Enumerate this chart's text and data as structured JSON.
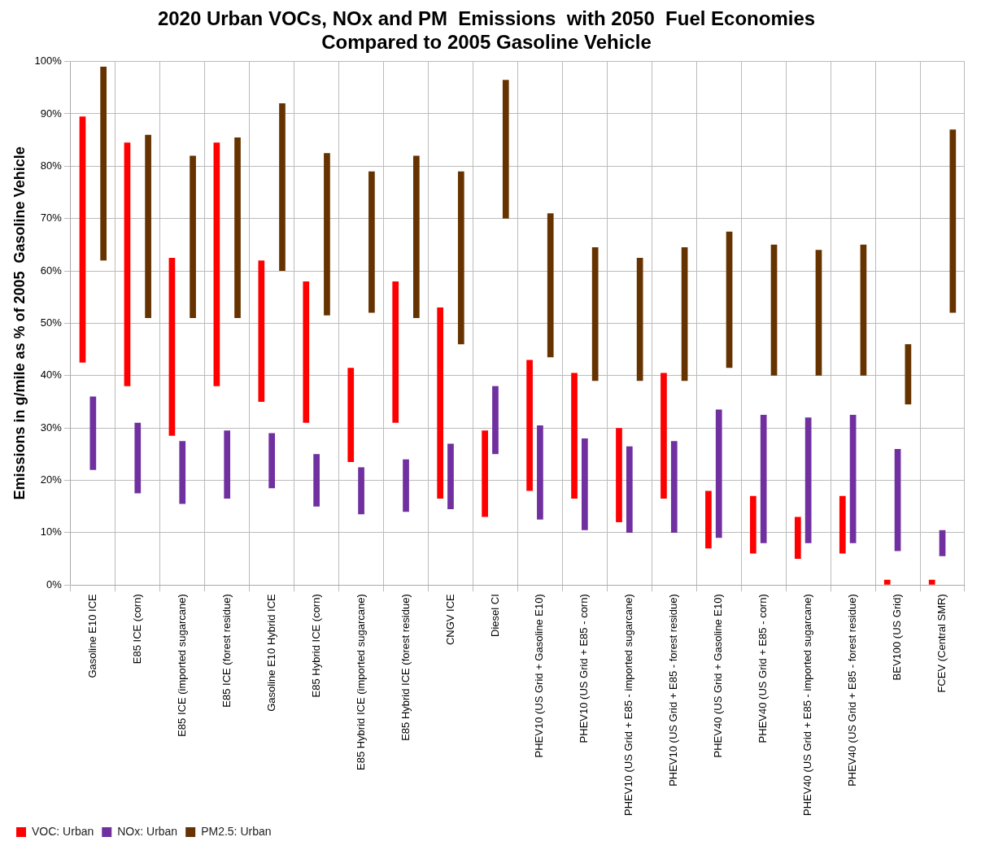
{
  "chart_data": {
    "type": "bar",
    "title": "2020 Urban VOCs, NOx and PM  Emissions  with 2050  Fuel Economies\nCompared to 2005 Gasoline Vehicle",
    "ylabel": "Emissions in g/mile as % of 2005  Gasoline Vehicle",
    "categories": [
      "Gasoline E10 ICE",
      "E85 ICE (corn)",
      "E85 ICE (imported sugarcane)",
      "E85 ICE (forest residue)",
      "Gasoline E10 Hybrid ICE",
      "E85 Hybrid ICE (corn)",
      "E85 Hybrid ICE (imported sugarcane)",
      "E85 Hybrid ICE (forest residue)",
      "CNGV ICE",
      "Diesel CI",
      "PHEV10 (US Grid + Gasoline E10)",
      "PHEV10 (US Grid + E85 - corn)",
      "PHEV10 (US Grid + E85 - imported sugarcane)",
      "PHEV10 (US Grid + E85 - forest residue)",
      "PHEV40 (US Grid + Gasoline E10)",
      "PHEV40 (US Grid + E85 - corn)",
      "PHEV40 (US Grid + E85 - imported sugarcane)",
      "PHEV40 (US Grid + E85 - forest residue)",
      "BEV100 (US Grid)",
      "FCEV (Central SMR)"
    ],
    "series": [
      {
        "name": "VOC: Urban",
        "color": "#ff0000",
        "base": [
          42.5,
          38,
          28.5,
          38,
          35,
          31,
          23.5,
          31,
          16.5,
          13,
          18,
          16.5,
          12,
          16.5,
          7,
          6,
          5,
          6,
          0,
          0
        ],
        "values": [
          47,
          46.5,
          34,
          46.5,
          27,
          27,
          18,
          27,
          36.5,
          16.5,
          25,
          24,
          18,
          24,
          11,
          11,
          8,
          11,
          1,
          1
        ]
      },
      {
        "name": "NOx: Urban",
        "color": "#7030a0",
        "base": [
          22,
          17.5,
          15.5,
          16.5,
          18.5,
          15,
          13.5,
          14,
          14.5,
          25,
          12.5,
          10.5,
          10,
          10,
          9,
          8,
          8,
          8,
          6.5,
          5.5
        ],
        "values": [
          14,
          13.5,
          12,
          13,
          10.5,
          10,
          9,
          10,
          12.5,
          13,
          18,
          17.5,
          16.5,
          17.5,
          24.5,
          24.5,
          24,
          24.5,
          19.5,
          5
        ]
      },
      {
        "name": "PM2.5: Urban",
        "color": "#663300",
        "base": [
          62,
          51,
          51,
          51,
          60,
          51.5,
          52,
          51,
          46,
          70,
          43.5,
          39,
          39,
          39,
          41.5,
          40,
          40,
          40,
          34.5,
          52
        ],
        "values": [
          37,
          35,
          31,
          34.5,
          32,
          31,
          27,
          31,
          33,
          26.5,
          27.5,
          25.5,
          23.5,
          25.5,
          26,
          25,
          24,
          25,
          11.5,
          35
        ]
      }
    ],
    "ylim": [
      0,
      100
    ],
    "yticks": [
      {
        "value": 0,
        "label": "0%"
      },
      {
        "value": 10,
        "label": "10%"
      },
      {
        "value": 20,
        "label": "20%"
      },
      {
        "value": 30,
        "label": "30%"
      },
      {
        "value": 40,
        "label": "40%"
      },
      {
        "value": 50,
        "label": "50%"
      },
      {
        "value": 60,
        "label": "60%"
      },
      {
        "value": 70,
        "label": "70%"
      },
      {
        "value": 80,
        "label": "80%"
      },
      {
        "value": 90,
        "label": "90%"
      },
      {
        "value": 100,
        "label": "100%"
      }
    ],
    "grid": true,
    "legend": "bottom left"
  }
}
